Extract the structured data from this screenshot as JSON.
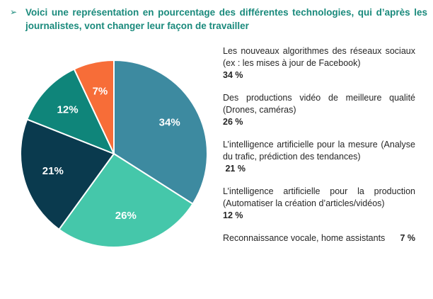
{
  "heading": {
    "bullet": "➢",
    "text": "Voici une représentation en pourcentage des différentes technologies, qui d’après les journalistes, vont changer leur façon de travailler"
  },
  "chart_data": {
    "type": "pie",
    "categories": [
      "Les nouveaux algorithmes des réseaux sociaux (ex : les mises à jour de Facebook)",
      "Des productions vidéo de meilleure qualité (Drones, caméras)",
      "L’intelligence artificielle pour la mesure (Analyse du trafic, prédiction des tendances)",
      "L’intelligence artificielle pour la production (Automatiser la création d’articles/vidéos)",
      "Reconnaissance vocale, home assistants"
    ],
    "values": [
      34,
      26,
      21,
      12,
      7
    ],
    "labels": [
      "34%",
      "26%",
      "21%",
      "12%",
      "7%"
    ],
    "colors": [
      "#3d8aa0",
      "#45c7aa",
      "#0a3a4e",
      "#0f857a",
      "#f76d38"
    ],
    "legend_placement": "right"
  },
  "legend": [
    {
      "desc": "Les nouveaux algorithmes des réseaux sociaux (ex : les mises à jour de Facebook)",
      "pct": "34 %"
    },
    {
      "desc": "Des productions vidéo de meilleure qualité (Drones, caméras)",
      "pct": "26 %"
    },
    {
      "desc": "L’intelligence artificielle pour la mesure (Analyse du trafic, prédiction des tendances)",
      "pct": " 21 %"
    },
    {
      "desc": "L’intelligence artificielle pour la production (Automatiser la création d’articles/vidéos)",
      "pct": "12 %"
    },
    {
      "desc": "Reconnaissance vocale, home assistants",
      "pct": "7 %"
    }
  ]
}
